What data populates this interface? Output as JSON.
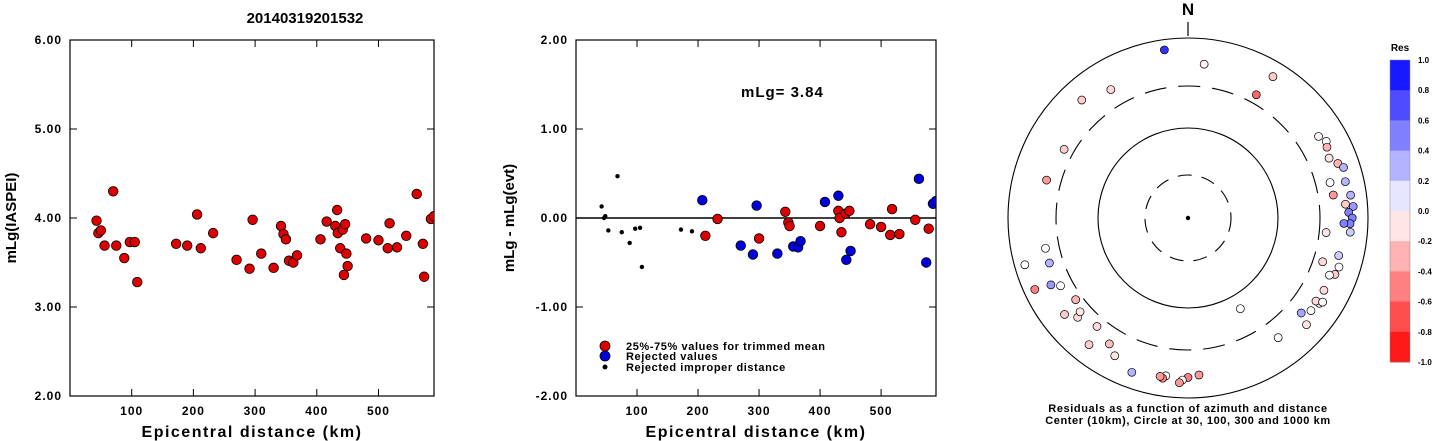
{
  "chart_data": [
    {
      "type": "scatter",
      "title": "20140319201532",
      "xlabel": "Epicentral distance (km)",
      "ylabel": "mLg(IASPEI)",
      "xlim": [
        0,
        590
      ],
      "ylim": [
        2.0,
        6.0
      ],
      "xticks": [
        "100",
        "200",
        "300",
        "400",
        "500"
      ],
      "xtick_values": [
        100,
        200,
        300,
        400,
        500
      ],
      "yticks": [
        "2.00",
        "3.00",
        "4.00",
        "5.00",
        "6.00"
      ],
      "ytick_values": [
        2,
        3,
        4,
        5,
        6
      ],
      "series": [
        {
          "color": "#dd0000",
          "points": [
            [
              43,
              3.97
            ],
            [
              46,
              3.83
            ],
            [
              50,
              3.86
            ],
            [
              56,
              3.69
            ],
            [
              70,
              4.3
            ],
            [
              75,
              3.69
            ],
            [
              88,
              3.55
            ],
            [
              97,
              3.73
            ],
            [
              105,
              3.73
            ],
            [
              109,
              3.28
            ],
            [
              172,
              3.71
            ],
            [
              190,
              3.69
            ],
            [
              206,
              4.04
            ],
            [
              212,
              3.66
            ],
            [
              232,
              3.83
            ],
            [
              270,
              3.53
            ],
            [
              291,
              3.43
            ],
            [
              296,
              3.98
            ],
            [
              310,
              3.6
            ],
            [
              330,
              3.44
            ],
            [
              342,
              3.91
            ],
            [
              346,
              3.82
            ],
            [
              350,
              3.76
            ],
            [
              355,
              3.52
            ],
            [
              362,
              3.5
            ],
            [
              368,
              3.58
            ],
            [
              406,
              3.76
            ],
            [
              416,
              3.96
            ],
            [
              430,
              3.91
            ],
            [
              433,
              4.09
            ],
            [
              434,
              3.83
            ],
            [
              438,
              3.66
            ],
            [
              442,
              3.87
            ],
            [
              444,
              3.36
            ],
            [
              446,
              3.93
            ],
            [
              448,
              3.6
            ],
            [
              450,
              3.46
            ],
            [
              480,
              3.77
            ],
            [
              500,
              3.75
            ],
            [
              515,
              3.66
            ],
            [
              518,
              3.94
            ],
            [
              530,
              3.67
            ],
            [
              545,
              3.8
            ],
            [
              562,
              4.27
            ],
            [
              572,
              3.71
            ],
            [
              574,
              3.34
            ],
            [
              585,
              3.99
            ],
            [
              590,
              4.02
            ]
          ]
        }
      ]
    },
    {
      "type": "scatter",
      "xlabel": "Epicentral distance (km)",
      "ylabel": "mLg - mLg(evt)",
      "xlim": [
        0,
        590
      ],
      "ylim": [
        -2.0,
        2.0
      ],
      "xticks": [
        "100",
        "200",
        "300",
        "400",
        "500"
      ],
      "xtick_values": [
        100,
        200,
        300,
        400,
        500
      ],
      "yticks": [
        "-2.00",
        "-1.00",
        "0.00",
        "1.00",
        "2.00"
      ],
      "ytick_values": [
        -2,
        -1,
        0,
        1,
        2
      ],
      "reference_line": 0,
      "annotation": "mLg= 3.84",
      "legend": {
        "placement": "bottom-left",
        "entries": [
          {
            "label": "25%-75% values for trimmed mean",
            "color": "#dd0000",
            "marker": "large"
          },
          {
            "label": "Rejected values",
            "color": "#0000dd",
            "marker": "large"
          },
          {
            "label": "Rejected improper distance",
            "color": "#000000",
            "marker": "small"
          }
        ]
      },
      "series": [
        {
          "name": "25%-75% values for trimmed mean",
          "color": "#dd0000",
          "points": [
            [
              212,
              -0.2
            ],
            [
              232,
              -0.01
            ],
            [
              300,
              -0.23
            ],
            [
              343,
              0.07
            ],
            [
              348,
              -0.05
            ],
            [
              350,
              -0.09
            ],
            [
              400,
              -0.09
            ],
            [
              430,
              0.08
            ],
            [
              432,
              0.0
            ],
            [
              435,
              -0.16
            ],
            [
              442,
              0.05
            ],
            [
              448,
              0.08
            ],
            [
              482,
              -0.07
            ],
            [
              500,
              -0.1
            ],
            [
              515,
              -0.19
            ],
            [
              518,
              0.1
            ],
            [
              530,
              -0.18
            ],
            [
              556,
              -0.02
            ],
            [
              578,
              -0.12
            ]
          ]
        },
        {
          "name": "Rejected values",
          "color": "#0000dd",
          "points": [
            [
              207,
              0.2
            ],
            [
              270,
              -0.31
            ],
            [
              290,
              -0.41
            ],
            [
              296,
              0.14
            ],
            [
              330,
              -0.4
            ],
            [
              356,
              -0.32
            ],
            [
              364,
              -0.33
            ],
            [
              368,
              -0.26
            ],
            [
              408,
              0.18
            ],
            [
              430,
              0.25
            ],
            [
              443,
              -0.47
            ],
            [
              450,
              -0.37
            ],
            [
              562,
              0.44
            ],
            [
              574,
              -0.5
            ],
            [
              585,
              0.16
            ],
            [
              590,
              0.19
            ]
          ]
        },
        {
          "name": "Rejected improper distance",
          "color": "#000000",
          "points": [
            [
              42,
              0.13
            ],
            [
              46,
              0.0
            ],
            [
              48,
              0.02
            ],
            [
              53,
              -0.14
            ],
            [
              68,
              0.47
            ],
            [
              75,
              -0.16
            ],
            [
              88,
              -0.28
            ],
            [
              97,
              -0.12
            ],
            [
              105,
              -0.11
            ],
            [
              108,
              -0.55
            ],
            [
              172,
              -0.13
            ],
            [
              190,
              -0.15
            ]
          ]
        }
      ]
    },
    {
      "type": "scatter",
      "subtype": "polar",
      "north_label": "N",
      "caption_lines": [
        "Residuals as a function of azimuth and distance",
        "Center (10km), Circle at 30, 100, 300 and 1000 km"
      ],
      "rings": [
        {
          "label": "30",
          "style": "dashed"
        },
        {
          "label": "100",
          "style": "solid"
        },
        {
          "label": "300",
          "style": "dashed"
        },
        {
          "label": "1000",
          "style": "solid"
        }
      ],
      "colorbar": {
        "title": "Res",
        "ticks": [
          "1.0",
          "0.8",
          "0.6",
          "0.4",
          "0.2",
          "0.0",
          "-0.2",
          "-0.4",
          "-0.6",
          "-0.8",
          "-1.0"
        ],
        "tick_values": [
          1.0,
          0.8,
          0.6,
          0.4,
          0.2,
          0.0,
          -0.2,
          -0.4,
          -0.6,
          -0.8,
          -1.0
        ],
        "positive_color": "#0000ff",
        "negative_color": "#ff0000"
      },
      "points": [
        {
          "azimuth": 352,
          "distance": 850,
          "residual": 0.8
        },
        {
          "azimuth": 6,
          "distance": 630,
          "residual": -0.05
        },
        {
          "azimuth": 31,
          "distance": 780,
          "residual": -0.2
        },
        {
          "azimuth": 29,
          "distance": 430,
          "residual": -0.6
        },
        {
          "azimuth": 329,
          "distance": 560,
          "residual": -0.15
        },
        {
          "azimuth": 318,
          "distance": 690,
          "residual": -0.2
        },
        {
          "azimuth": 58,
          "distance": 620,
          "residual": -0.05
        },
        {
          "azimuth": 61,
          "distance": 680,
          "residual": 0.0
        },
        {
          "azimuth": 63,
          "distance": 650,
          "residual": -0.3
        },
        {
          "azimuth": 67,
          "distance": 610,
          "residual": -0.1
        },
        {
          "azimuth": 70,
          "distance": 700,
          "residual": -0.3
        },
        {
          "azimuth": 72,
          "distance": 760,
          "residual": 0.3
        },
        {
          "azimuth": 76,
          "distance": 510,
          "residual": 0.0
        },
        {
          "azimuth": 77,
          "distance": 730,
          "residual": 0.3
        },
        {
          "azimuth": 81,
          "distance": 520,
          "residual": -0.4
        },
        {
          "azimuth": 82,
          "distance": 770,
          "residual": 0.3
        },
        {
          "azimuth": 85,
          "distance": 680,
          "residual": -0.2
        },
        {
          "azimuth": 86,
          "distance": 790,
          "residual": 0.4
        },
        {
          "azimuth": 88,
          "distance": 720,
          "residual": 0.5
        },
        {
          "azimuth": 90,
          "distance": 770,
          "residual": 0.5
        },
        {
          "azimuth": 92,
          "distance": 740,
          "residual": 0.5
        },
        {
          "azimuth": 92,
          "distance": 650,
          "residual": 0.5
        },
        {
          "azimuth": 95,
          "distance": 750,
          "residual": 0.2
        },
        {
          "azimuth": 96,
          "distance": 400,
          "residual": -0.1
        },
        {
          "azimuth": 104,
          "distance": 640,
          "residual": 0.2
        },
        {
          "azimuth": 108,
          "distance": 690,
          "residual": 0.0
        },
        {
          "azimuth": 111,
          "distance": 670,
          "residual": -0.2
        },
        {
          "azimuth": 112,
          "distance": 600,
          "residual": 0.0
        },
        {
          "azimuth": 118,
          "distance": 620,
          "residual": -0.15
        },
        {
          "azimuth": 123,
          "distance": 660,
          "residual": -0.1
        },
        {
          "azimuth": 123,
          "distance": 600,
          "residual": -0.15
        },
        {
          "azimuth": 122,
          "distance": 690,
          "residual": 0.0
        },
        {
          "azimuth": 127,
          "distance": 620,
          "residual": 0.0
        },
        {
          "azimuth": 132,
          "distance": 700,
          "residual": -0.1
        },
        {
          "azimuth": 130,
          "distance": 530,
          "residual": 0.35
        },
        {
          "azimuth": 143,
          "distance": 560,
          "residual": 0.0
        },
        {
          "azimuth": 176,
          "distance": 670,
          "residual": -0.4
        },
        {
          "azimuth": 180,
          "distance": 700,
          "residual": -0.5
        },
        {
          "azimuth": 182,
          "distance": 740,
          "residual": 0.0
        },
        {
          "azimuth": 183,
          "distance": 780,
          "residual": -0.4
        },
        {
          "azimuth": 188,
          "distance": 700,
          "residual": 0.0
        },
        {
          "azimuth": 189,
          "distance": 740,
          "residual": -0.5
        },
        {
          "azimuth": 190,
          "distance": 720,
          "residual": -0.4
        },
        {
          "azimuth": 200,
          "distance": 770,
          "residual": 0.3
        },
        {
          "azimuth": 208,
          "distance": 650,
          "residual": -0.1
        },
        {
          "azimuth": 212,
          "distance": 540,
          "residual": -0.25
        },
        {
          "azimuth": 218,
          "distance": 720,
          "residual": -0.2
        },
        {
          "azimuth": 220,
          "distance": 440,
          "residual": -0.15
        },
        {
          "azimuth": 228,
          "distance": 540,
          "residual": -0.15
        },
        {
          "azimuth": 229,
          "distance": 460,
          "residual": -0.1
        },
        {
          "azimuth": 232,
          "distance": 660,
          "residual": -0.2
        },
        {
          "azimuth": 234,
          "distance": 400,
          "residual": -0.3
        },
        {
          "azimuth": 242,
          "distance": 480,
          "residual": 0.0
        },
        {
          "azimuth": 244,
          "distance": 600,
          "residual": 0.4
        },
        {
          "azimuth": 245,
          "distance": 840,
          "residual": -0.5
        },
        {
          "azimuth": 254,
          "distance": 850,
          "residual": 0.0
        },
        {
          "azimuth": 252,
          "distance": 500,
          "residual": 0.3
        },
        {
          "azimuth": 258,
          "distance": 500,
          "residual": 0.0
        },
        {
          "azimuth": 285,
          "distance": 510,
          "residual": -0.4
        },
        {
          "azimuth": 299,
          "distance": 440,
          "residual": -0.2
        },
        {
          "azimuth": 150,
          "distance": 170,
          "residual": 0.0
        },
        {
          "azimuth": 108,
          "distance": 440,
          "residual": -0.15
        }
      ]
    }
  ]
}
